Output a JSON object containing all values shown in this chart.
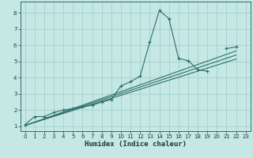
{
  "xlabel": "Humidex (Indice chaleur)",
  "bg_color": "#c5e8e5",
  "grid_color": "#9ecbc7",
  "line_color": "#2d6e6a",
  "xlim": [
    -0.5,
    23.5
  ],
  "ylim": [
    0.7,
    8.7
  ],
  "xticks": [
    0,
    1,
    2,
    3,
    4,
    5,
    6,
    7,
    8,
    9,
    10,
    11,
    12,
    13,
    14,
    15,
    16,
    17,
    18,
    19,
    20,
    21,
    22,
    23
  ],
  "yticks": [
    1,
    2,
    3,
    4,
    5,
    6,
    7,
    8
  ],
  "lines": [
    {
      "x": [
        0,
        1,
        2,
        3,
        4,
        5,
        6,
        7,
        8,
        9,
        10,
        11,
        12,
        13,
        14,
        15,
        16,
        17,
        18,
        19,
        20,
        21,
        22
      ],
      "y": [
        1.1,
        1.6,
        1.6,
        1.85,
        2.0,
        2.1,
        2.2,
        2.3,
        2.5,
        2.65,
        3.5,
        3.75,
        4.1,
        6.2,
        8.15,
        7.65,
        5.2,
        5.05,
        4.5,
        4.4,
        null,
        5.8,
        5.9
      ],
      "has_markers": true
    },
    {
      "x": [
        0,
        22
      ],
      "y": [
        1.05,
        5.65
      ],
      "has_markers": false
    },
    {
      "x": [
        0,
        22
      ],
      "y": [
        1.05,
        5.4
      ],
      "has_markers": false
    },
    {
      "x": [
        0,
        22
      ],
      "y": [
        1.05,
        5.15
      ],
      "has_markers": false
    }
  ]
}
